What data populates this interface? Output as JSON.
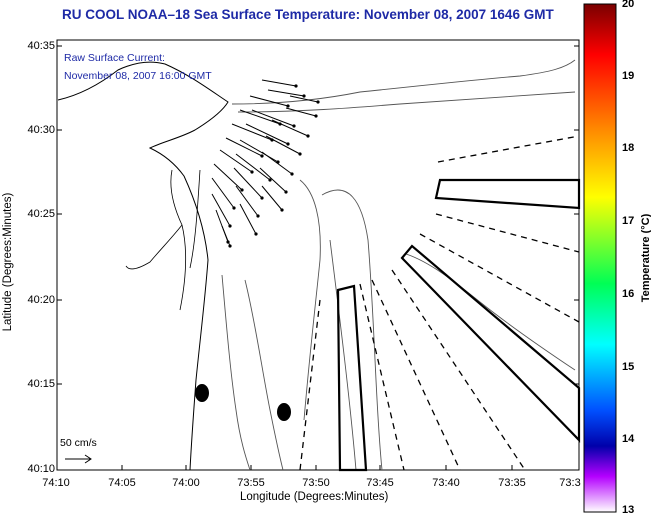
{
  "title": "RU COOL  NOAA–18  Sea Surface Temperature:  November 08, 2007 1646 GMT",
  "current_note": {
    "line1": "Raw Surface Current:",
    "line2": "November 08, 2007 16:00 GMT"
  },
  "y_axis": {
    "label": "Latitude (Degrees:Minutes)",
    "ticks": [
      "40:35",
      "40:30",
      "40:25",
      "40:20",
      "40:15",
      "40:10"
    ]
  },
  "x_axis": {
    "label": "Longitude (Degrees:Minutes)",
    "ticks": [
      "74:10",
      "74:05",
      "74:00",
      "73:55",
      "73:50",
      "73:45",
      "73:40",
      "73:35",
      "73:3"
    ]
  },
  "scale": {
    "label": "50 cm/s"
  },
  "colorbar": {
    "title": "Temperature (°C)",
    "ticks": [
      "20",
      "19",
      "18",
      "17",
      "16",
      "15",
      "14",
      "13"
    ],
    "colors": [
      "#7a0000",
      "#ff0000",
      "#ff8c00",
      "#ffff00",
      "#00ff55",
      "#00ffff",
      "#0050ff",
      "#0000aa",
      "#b400ff",
      "#ffffff"
    ]
  }
}
